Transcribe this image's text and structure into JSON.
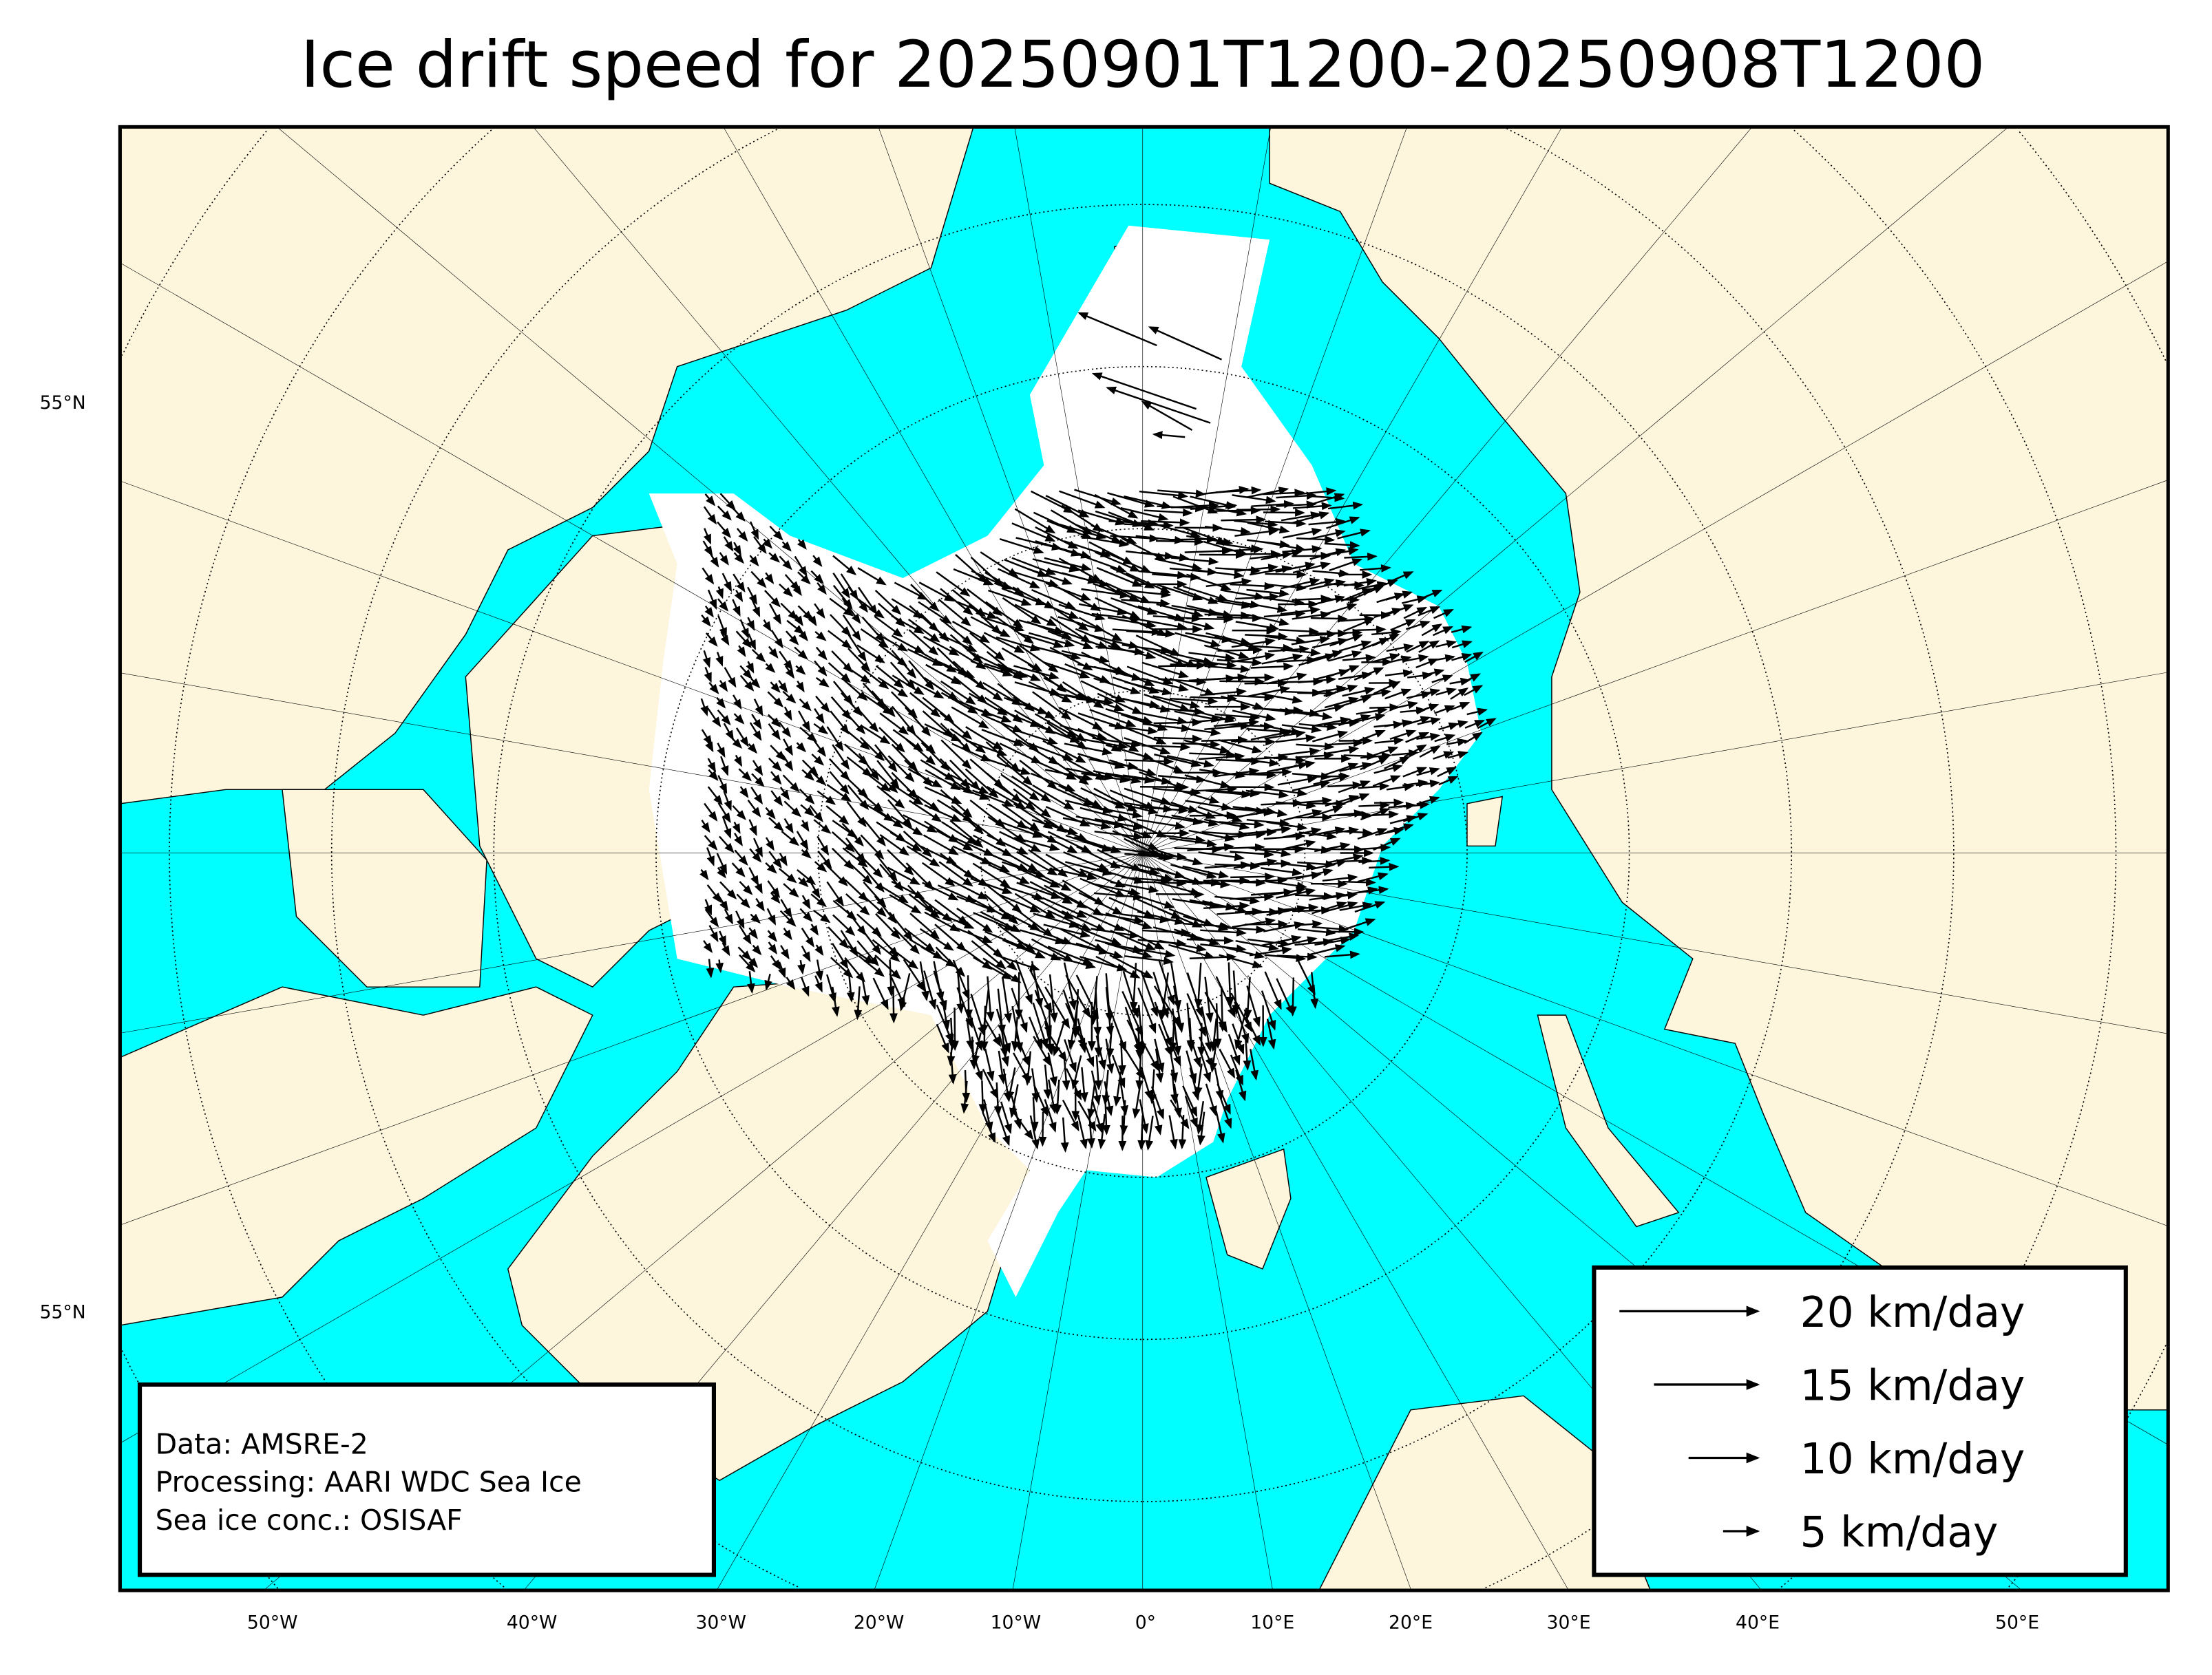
{
  "title": "Ice drift speed for 20250901T1200-20250908T1200",
  "colors": {
    "ocean": "#00ffff",
    "land": "#fdf6dc",
    "ice": "#ffffff",
    "vectors": "#000000"
  },
  "longitude_labels": [
    "50°W",
    "40°W",
    "30°W",
    "20°W",
    "10°W",
    "0°",
    "10°E",
    "20°E",
    "30°E",
    "40°E",
    "50°E"
  ],
  "latitude_labels": [
    "55°N",
    "55°N"
  ],
  "info_box": {
    "line1": "Data: AMSRE-2",
    "line2": "Processing: AARI WDC Sea Ice",
    "line3": "Sea ice conc.: OSISAF"
  },
  "legend": [
    {
      "speed": 20,
      "label": "20 km/day"
    },
    {
      "speed": 15,
      "label": "15 km/day"
    },
    {
      "speed": 10,
      "label": "10 km/day"
    },
    {
      "speed": 5,
      "label": "5 km/day"
    }
  ]
}
